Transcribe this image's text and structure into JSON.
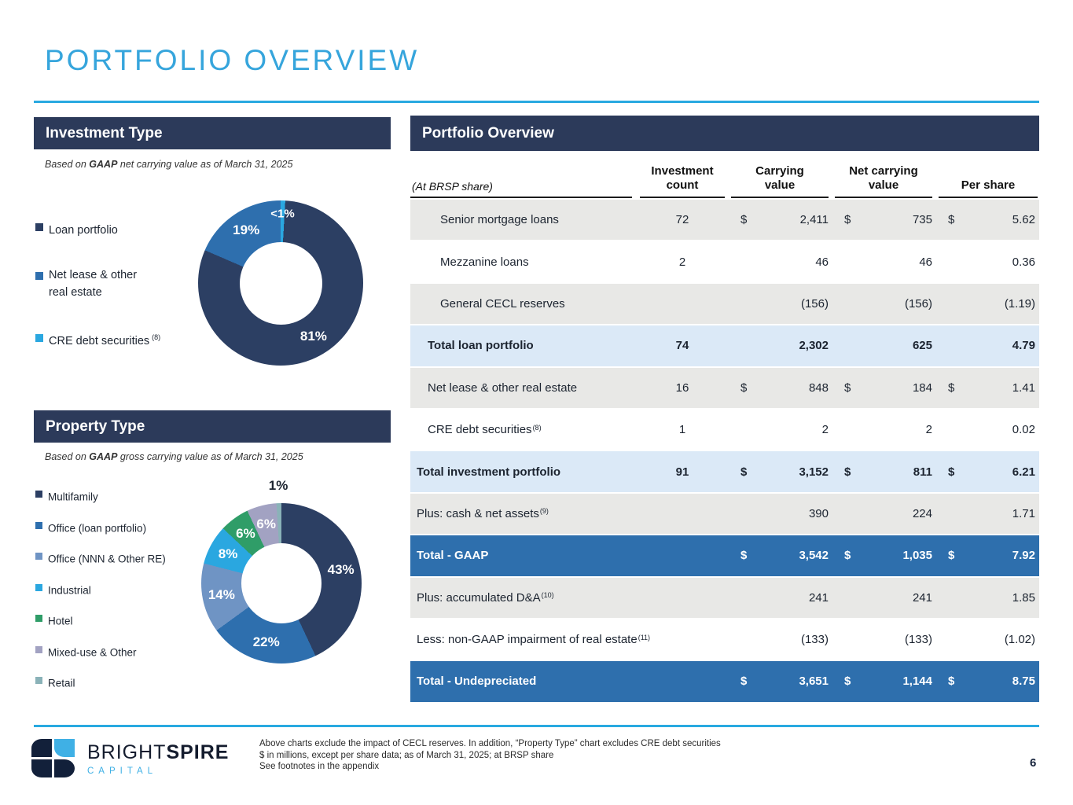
{
  "page": {
    "title": "PORTFOLIO OVERVIEW",
    "page_number": "6"
  },
  "investment_type": {
    "header": "Investment Type",
    "subtitle_prefix": "Based on ",
    "subtitle_bold": "GAAP",
    "subtitle_rest": " net carrying value as of March 31, 2025",
    "legend": [
      {
        "label": "Loan portfolio",
        "sup": "",
        "color": "#2c3f63"
      },
      {
        "label": "Net lease & other\nreal estate",
        "sup": "",
        "color": "#2e6fae"
      },
      {
        "label": "CRE debt securities",
        "sup": "(8)",
        "color": "#2aa7e0"
      }
    ]
  },
  "property_type": {
    "header": "Property Type",
    "subtitle_prefix": "Based on ",
    "subtitle_bold": "GAAP",
    "subtitle_rest": " gross carrying value as of March 31, 2025",
    "legend": [
      {
        "label": "Multifamily",
        "sup": "",
        "color": "#2c3f63"
      },
      {
        "label": "Office (loan portfolio)",
        "sup": "",
        "color": "#2e6fae"
      },
      {
        "label": "Office (NNN & Other RE)",
        "sup": "",
        "color": "#6f94c4"
      },
      {
        "label": "Industrial",
        "sup": "",
        "color": "#2aa7e0"
      },
      {
        "label": "Hotel",
        "sup": "",
        "color": "#2f9d68"
      },
      {
        "label": "Mixed-use & Other",
        "sup": "",
        "color": "#a2a2c2"
      },
      {
        "label": "Retail",
        "sup": "",
        "color": "#8ab2b8"
      }
    ]
  },
  "chart_data": [
    {
      "type": "pie",
      "title": "Investment Type",
      "subtitle": "Based on GAAP net carrying value as of March 31, 2025",
      "donut": true,
      "slices": [
        {
          "label": "CRE debt securities (8)",
          "value_label": "<1%",
          "pct": 0.9,
          "color": "#2aa7e0",
          "lr": 0.84,
          "lsize": 15
        },
        {
          "label": "Loan portfolio",
          "value_label": "81%",
          "pct": 80.6,
          "color": "#2c3f63"
        },
        {
          "label": "Net lease & other real estate",
          "value_label": "19%",
          "pct": 18.5,
          "color": "#2e6fae"
        }
      ]
    },
    {
      "type": "pie",
      "title": "Property Type",
      "subtitle": "Based on GAAP gross carrying value as of March 31, 2025",
      "donut": true,
      "slices": [
        {
          "label": "Multifamily",
          "value_label": "43%",
          "pct": 43,
          "color": "#2c3f63"
        },
        {
          "label": "Office (loan portfolio)",
          "value_label": "22%",
          "pct": 22,
          "color": "#2e6fae"
        },
        {
          "label": "Office (NNN & Other RE)",
          "value_label": "14%",
          "pct": 14,
          "color": "#6f94c4"
        },
        {
          "label": "Industrial",
          "value_label": "8%",
          "pct": 8,
          "color": "#2aa7e0"
        },
        {
          "label": "Hotel",
          "value_label": "6%",
          "pct": 6,
          "color": "#2f9d68"
        },
        {
          "label": "Mixed-use & Other",
          "value_label": "6%",
          "pct": 6,
          "color": "#a2a2c2"
        },
        {
          "label": "Retail",
          "value_label": "1%",
          "pct": 1,
          "color": "#8ab2b8",
          "lr": 1.22,
          "lcolor": "#1c2430"
        }
      ]
    }
  ],
  "portfolio_table": {
    "header": "Portfolio Overview",
    "corner_label": "(At BRSP share)",
    "columns": [
      {
        "l1": "Investment",
        "l2": "count"
      },
      {
        "l1": "Carrying",
        "l2": "value"
      },
      {
        "l1": "Net carrying",
        "l2": "value"
      },
      {
        "l1": "Per share",
        "l2": ""
      }
    ],
    "rows": [
      {
        "label": "Senior mortgage loans",
        "sup": "",
        "ind": "ind2",
        "style": "gray",
        "count": "72",
        "cv_d": "$",
        "cv": "2,411",
        "ncv_d": "$",
        "ncv": "735",
        "ps_d": "$",
        "ps": "5.62"
      },
      {
        "label": "Mezzanine loans",
        "sup": "",
        "ind": "ind2",
        "style": "white",
        "count": "2",
        "cv_d": "",
        "cv": "46",
        "ncv_d": "",
        "ncv": "46",
        "ps_d": "",
        "ps": "0.36"
      },
      {
        "label": "General CECL reserves",
        "sup": "",
        "ind": "ind2",
        "style": "gray",
        "count": "",
        "cv_d": "",
        "cv": "(156)",
        "ncv_d": "",
        "ncv": "(156)",
        "ps_d": "",
        "ps": "(1.19)"
      },
      {
        "label": "Total loan portfolio",
        "sup": "",
        "ind": "ind1",
        "style": "total-light",
        "count": "74",
        "cv_d": "",
        "cv": "2,302",
        "ncv_d": "",
        "ncv": "625",
        "ps_d": "",
        "ps": "4.79"
      },
      {
        "label": "Net lease & other real estate",
        "sup": "",
        "ind": "ind1",
        "style": "gray",
        "count": "16",
        "cv_d": "$",
        "cv": "848",
        "ncv_d": "$",
        "ncv": "184",
        "ps_d": "$",
        "ps": "1.41"
      },
      {
        "label": "CRE debt securities",
        "sup": "(8)",
        "ind": "ind1",
        "style": "white",
        "count": "1",
        "cv_d": "",
        "cv": "2",
        "ncv_d": "",
        "ncv": "2",
        "ps_d": "",
        "ps": "0.02"
      },
      {
        "label": "Total investment portfolio",
        "sup": "",
        "ind": "ind0",
        "style": "total-light",
        "count": "91",
        "cv_d": "$",
        "cv": "3,152",
        "ncv_d": "$",
        "ncv": "811",
        "ps_d": "$",
        "ps": "6.21"
      },
      {
        "label": "Plus: cash & net assets",
        "sup": "(9)",
        "ind": "ind0",
        "style": "gray",
        "count": "",
        "cv_d": "",
        "cv": "390",
        "ncv_d": "",
        "ncv": "224",
        "ps_d": "",
        "ps": "1.71"
      },
      {
        "label": "Total - GAAP",
        "sup": "",
        "ind": "ind0",
        "style": "total-blue",
        "count": "",
        "cv_d": "$",
        "cv": "3,542",
        "ncv_d": "$",
        "ncv": "1,035",
        "ps_d": "$",
        "ps": "7.92"
      },
      {
        "label": "Plus: accumulated D&A",
        "sup": "(10)",
        "ind": "ind0",
        "style": "gray",
        "count": "",
        "cv_d": "",
        "cv": "241",
        "ncv_d": "",
        "ncv": "241",
        "ps_d": "",
        "ps": "1.85"
      },
      {
        "label": "Less: non-GAAP impairment of real estate",
        "sup": "(11)",
        "ind": "ind0",
        "style": "white",
        "count": "",
        "cv_d": "",
        "cv": "(133)",
        "ncv_d": "",
        "ncv": "(133)",
        "ps_d": "",
        "ps": "(1.02)"
      },
      {
        "label": "Total - Undepreciated",
        "sup": "",
        "ind": "ind0",
        "style": "total-blue",
        "count": "",
        "cv_d": "$",
        "cv": "3,651",
        "ncv_d": "$",
        "ncv": "1,144",
        "ps_d": "$",
        "ps": "8.75"
      }
    ]
  },
  "footer": {
    "logo_bright": "BRIGHT",
    "logo_spire": "SPIRE",
    "logo_capital": "CAPITAL",
    "note1": "Above charts exclude the impact of CECL reserves. In addition, “Property Type” chart excludes CRE debt securities",
    "note2": "$ in millions, except per share data; as of March 31, 2025; at BRSP share",
    "note3": "See footnotes in the appendix"
  }
}
